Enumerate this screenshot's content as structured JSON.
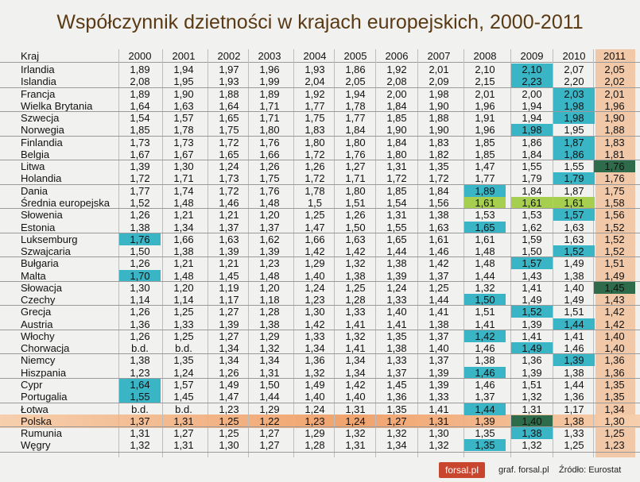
{
  "title": "Współczynnik dzietności w krajach europejskich, 2000-2011",
  "table": {
    "corner": "Kraj",
    "years": [
      "2000",
      "2001",
      "2002",
      "2003",
      "2004",
      "2005",
      "2006",
      "2007",
      "2008",
      "2009",
      "2010",
      "2011"
    ],
    "rows": [
      {
        "country": "Irlandia",
        "values": [
          "1,89",
          "1,94",
          "1,97",
          "1,96",
          "1,93",
          "1,86",
          "1,92",
          "2,01",
          "2,10",
          "2,10",
          "2,07",
          "2,05"
        ]
      },
      {
        "country": "Islandia",
        "values": [
          "2,08",
          "1,95",
          "1,93",
          "1,99",
          "2,04",
          "2,05",
          "2,08",
          "2,09",
          "2,15",
          "2,23",
          "2,20",
          "2,02"
        ]
      },
      {
        "country": "Francja",
        "values": [
          "1,89",
          "1,90",
          "1,88",
          "1,89",
          "1,92",
          "1,94",
          "2,00",
          "1,98",
          "2,01",
          "2,00",
          "2,03",
          "2,01"
        ]
      },
      {
        "country": "Wielka Brytania",
        "values": [
          "1,64",
          "1,63",
          "1,64",
          "1,71",
          "1,77",
          "1,78",
          "1,84",
          "1,90",
          "1,96",
          "1,94",
          "1,98",
          "1,96"
        ]
      },
      {
        "country": "Szwecja",
        "values": [
          "1,54",
          "1,57",
          "1,65",
          "1,71",
          "1,75",
          "1,77",
          "1,85",
          "1,88",
          "1,91",
          "1,94",
          "1,98",
          "1,90"
        ]
      },
      {
        "country": "Norwegia",
        "values": [
          "1,85",
          "1,78",
          "1,75",
          "1,80",
          "1,83",
          "1,84",
          "1,90",
          "1,90",
          "1,96",
          "1,98",
          "1,95",
          "1,88"
        ]
      },
      {
        "country": "Finlandia",
        "values": [
          "1,73",
          "1,73",
          "1,72",
          "1,76",
          "1,80",
          "1,80",
          "1,84",
          "1,83",
          "1,85",
          "1,86",
          "1,87",
          "1,83"
        ]
      },
      {
        "country": "Belgia",
        "values": [
          "1,67",
          "1,67",
          "1,65",
          "1,66",
          "1,72",
          "1,76",
          "1,80",
          "1,82",
          "1,85",
          "1,84",
          "1,86",
          "1,81"
        ]
      },
      {
        "country": "Litwa",
        "values": [
          "1,39",
          "1,30",
          "1,24",
          "1,26",
          "1,26",
          "1,27",
          "1,31",
          "1,35",
          "1,47",
          "1,55",
          "1,55",
          "1,76"
        ]
      },
      {
        "country": "Holandia",
        "values": [
          "1,72",
          "1,71",
          "1,73",
          "1,75",
          "1,72",
          "1,71",
          "1,72",
          "1,72",
          "1,77",
          "1,79",
          "1,79",
          "1,76"
        ]
      },
      {
        "country": "Dania",
        "values": [
          "1,77",
          "1,74",
          "1,72",
          "1,76",
          "1,78",
          "1,80",
          "1,85",
          "1,84",
          "1,89",
          "1,84",
          "1,87",
          "1,75"
        ]
      },
      {
        "country": "Średnia europejska",
        "values": [
          "1,52",
          "1,48",
          "1,46",
          "1,48",
          "1,5",
          "1,51",
          "1,54",
          "1,56",
          "1,61",
          "1,61",
          "1,61",
          "1,58"
        ]
      },
      {
        "country": "Słowenia",
        "values": [
          "1,26",
          "1,21",
          "1,21",
          "1,20",
          "1,25",
          "1,26",
          "1,31",
          "1,38",
          "1,53",
          "1,53",
          "1,57",
          "1,56"
        ]
      },
      {
        "country": "Estonia",
        "values": [
          "1,38",
          "1,34",
          "1,37",
          "1,37",
          "1,47",
          "1,50",
          "1,55",
          "1,63",
          "1,65",
          "1,62",
          "1,63",
          "1,52"
        ]
      },
      {
        "country": "Luksemburg",
        "values": [
          "1,76",
          "1,66",
          "1,63",
          "1,62",
          "1,66",
          "1,63",
          "1,65",
          "1,61",
          "1,61",
          "1,59",
          "1,63",
          "1,52"
        ]
      },
      {
        "country": "Szwajcaria",
        "values": [
          "1,50",
          "1,38",
          "1,39",
          "1,39",
          "1,42",
          "1,42",
          "1,44",
          "1,46",
          "1,48",
          "1,50",
          "1,52",
          "1,52"
        ]
      },
      {
        "country": "Bułgaria",
        "values": [
          "1,26",
          "1,21",
          "1,21",
          "1,23",
          "1,29",
          "1,32",
          "1,38",
          "1,42",
          "1,48",
          "1,57",
          "1,49",
          "1,51"
        ]
      },
      {
        "country": "Malta",
        "values": [
          "1,70",
          "1,48",
          "1,45",
          "1,48",
          "1,40",
          "1,38",
          "1,39",
          "1,37",
          "1,44",
          "1,43",
          "1,38",
          "1,49"
        ]
      },
      {
        "country": "Słowacja",
        "values": [
          "1,30",
          "1,20",
          "1,19",
          "1,20",
          "1,24",
          "1,25",
          "1,24",
          "1,25",
          "1,32",
          "1,41",
          "1,40",
          "1,45"
        ]
      },
      {
        "country": "Czechy",
        "values": [
          "1,14",
          "1,14",
          "1,17",
          "1,18",
          "1,23",
          "1,28",
          "1,33",
          "1,44",
          "1,50",
          "1,49",
          "1,49",
          "1,43"
        ]
      },
      {
        "country": "Grecja",
        "values": [
          "1,26",
          "1,25",
          "1,27",
          "1,28",
          "1,30",
          "1,33",
          "1,40",
          "1,41",
          "1,51",
          "1,52",
          "1,51",
          "1,42"
        ]
      },
      {
        "country": "Austria",
        "values": [
          "1,36",
          "1,33",
          "1,39",
          "1,38",
          "1,42",
          "1,41",
          "1,41",
          "1,38",
          "1,41",
          "1,39",
          "1,44",
          "1,42"
        ]
      },
      {
        "country": "Włochy",
        "values": [
          "1,26",
          "1,25",
          "1,27",
          "1,29",
          "1,33",
          "1,32",
          "1,35",
          "1,37",
          "1,42",
          "1,41",
          "1,41",
          "1,40"
        ]
      },
      {
        "country": "Chorwacja",
        "values": [
          "b.d.",
          "b.d.",
          "1,34",
          "1,32",
          "1,34",
          "1,41",
          "1,38",
          "1,40",
          "1,46",
          "1,49",
          "1,46",
          "1,40"
        ]
      },
      {
        "country": "Niemcy",
        "values": [
          "1,38",
          "1,35",
          "1,34",
          "1,34",
          "1,36",
          "1,34",
          "1,33",
          "1,37",
          "1,38",
          "1,36",
          "1,39",
          "1,36"
        ]
      },
      {
        "country": "Hiszpania",
        "values": [
          "1,23",
          "1,24",
          "1,26",
          "1,31",
          "1,32",
          "1,34",
          "1,37",
          "1,39",
          "1,46",
          "1,39",
          "1,38",
          "1,36"
        ]
      },
      {
        "country": "Cypr",
        "values": [
          "1,64",
          "1,57",
          "1,49",
          "1,50",
          "1,49",
          "1,42",
          "1,45",
          "1,39",
          "1,46",
          "1,51",
          "1,44",
          "1,35"
        ]
      },
      {
        "country": "Portugalia",
        "values": [
          "1,55",
          "1,45",
          "1,47",
          "1,44",
          "1,40",
          "1,40",
          "1,36",
          "1,33",
          "1,37",
          "1,32",
          "1,36",
          "1,35"
        ]
      },
      {
        "country": "Łotwa",
        "values": [
          "b.d.",
          "b.d.",
          "1,23",
          "1,29",
          "1,24",
          "1,31",
          "1,35",
          "1,41",
          "1,44",
          "1,31",
          "1,17",
          "1,34"
        ]
      },
      {
        "country": "Polska",
        "values": [
          "1,37",
          "1,31",
          "1,25",
          "1,22",
          "1,23",
          "1,24",
          "1,27",
          "1,31",
          "1,39",
          "1,40",
          "1,38",
          "1,30"
        ]
      },
      {
        "country": "Rumunia",
        "values": [
          "1,31",
          "1,27",
          "1,25",
          "1,27",
          "1,29",
          "1,32",
          "1,32",
          "1,30",
          "1,35",
          "1,38",
          "1,33",
          "1,25"
        ]
      },
      {
        "country": "Węgry",
        "values": [
          "1,32",
          "1,31",
          "1,30",
          "1,27",
          "1,28",
          "1,31",
          "1,34",
          "1,32",
          "1,35",
          "1,32",
          "1,25",
          "1,23"
        ]
      }
    ],
    "highlights": [
      {
        "row": 0,
        "col": 9,
        "color": "#3ab5c6"
      },
      {
        "row": 1,
        "col": 9,
        "color": "#3ab5c6"
      },
      {
        "row": 2,
        "col": 10,
        "color": "#3ab5c6"
      },
      {
        "row": 3,
        "col": 10,
        "color": "#3ab5c6"
      },
      {
        "row": 4,
        "col": 10,
        "color": "#3ab5c6"
      },
      {
        "row": 5,
        "col": 9,
        "color": "#3ab5c6"
      },
      {
        "row": 6,
        "col": 10,
        "color": "#3ab5c6"
      },
      {
        "row": 7,
        "col": 10,
        "color": "#3ab5c6"
      },
      {
        "row": 8,
        "col": 11,
        "color": "#2e6b4a"
      },
      {
        "row": 9,
        "col": 10,
        "color": "#3ab5c6"
      },
      {
        "row": 10,
        "col": 8,
        "color": "#3ab5c6"
      },
      {
        "row": 11,
        "col": 8,
        "color": "#a6cf4f"
      },
      {
        "row": 11,
        "col": 9,
        "color": "#a6cf4f"
      },
      {
        "row": 11,
        "col": 10,
        "color": "#a6cf4f"
      },
      {
        "row": 12,
        "col": 10,
        "color": "#3ab5c6"
      },
      {
        "row": 13,
        "col": 8,
        "color": "#3ab5c6"
      },
      {
        "row": 14,
        "col": 0,
        "color": "#3ab5c6"
      },
      {
        "row": 15,
        "col": 10,
        "color": "#3ab5c6"
      },
      {
        "row": 16,
        "col": 9,
        "color": "#3ab5c6"
      },
      {
        "row": 17,
        "col": 0,
        "color": "#3ab5c6"
      },
      {
        "row": 18,
        "col": 11,
        "color": "#2e6b4a"
      },
      {
        "row": 19,
        "col": 8,
        "color": "#3ab5c6"
      },
      {
        "row": 20,
        "col": 9,
        "color": "#3ab5c6"
      },
      {
        "row": 21,
        "col": 10,
        "color": "#3ab5c6"
      },
      {
        "row": 22,
        "col": 8,
        "color": "#3ab5c6"
      },
      {
        "row": 23,
        "col": 9,
        "color": "#3ab5c6"
      },
      {
        "row": 24,
        "col": 10,
        "color": "#3ab5c6"
      },
      {
        "row": 25,
        "col": 8,
        "color": "#3ab5c6"
      },
      {
        "row": 26,
        "col": 0,
        "color": "#3ab5c6"
      },
      {
        "row": 27,
        "col": 0,
        "color": "#3ab5c6"
      },
      {
        "row": 28,
        "col": 8,
        "color": "#3ab5c6"
      },
      {
        "row": 29,
        "col": 9,
        "color": "#2e6b4a"
      },
      {
        "row": 30,
        "col": 9,
        "color": "#3ab5c6"
      },
      {
        "row": 31,
        "col": 8,
        "color": "#3ab5c6"
      }
    ]
  },
  "footer": {
    "logo": "forsal.pl",
    "graf": "graf. forsal.pl",
    "source": "Źródło: Eurostat"
  },
  "colors": {
    "title": "#5a3a14",
    "col2011": "#f2c9a8",
    "polska_row": "#f0a36d",
    "highlight_teal": "#3ab5c6",
    "highlight_green": "#a6cf4f",
    "highlight_dark": "#2e6b4a",
    "logo_bg": "#c9462e"
  }
}
